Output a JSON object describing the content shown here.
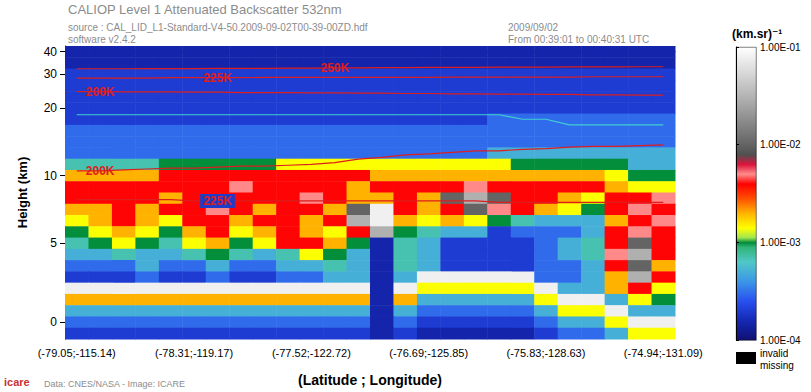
{
  "chart_data": {
    "type": "heatmap",
    "title": "CALIOP Level 1 Attenuated Backscatter 532nm",
    "texts": {
      "source": "source : CAL_LID_L1-Standard-V4-50.2009-09-02T00-39-00ZD.hdf",
      "software": "software v2.4.2",
      "date": "2009/09/02",
      "time": "From 00:39:01 to 00:40:31 UTC",
      "credit": "Data: CNES/NASA - Image: ICARE",
      "logo": "icare",
      "invalid": "invalid",
      "missing": "missing"
    },
    "x_label": "(Latitude ; Longitude)",
    "y_label": "Height (km)",
    "categories": [
      "(-79.05;-115.14)",
      null,
      null,
      null,
      null,
      "(-78.31;-119.17)",
      null,
      null,
      null,
      null,
      "(-77.52;-122.72)",
      null,
      null,
      null,
      null,
      "(-76.69;-125.85)",
      null,
      null,
      null,
      null,
      "(-75.83;-128.63)",
      null,
      null,
      null,
      null,
      "(-74.94;-131.09)"
    ],
    "heights": [
      40,
      35,
      30,
      26.5,
      23,
      20,
      18,
      16,
      14,
      12.5,
      11.2,
      10,
      9.1,
      8.2,
      7.4,
      6.6,
      5.8,
      5,
      4,
      3.1,
      2.4,
      1.8,
      1.2,
      0.6,
      0,
      -0.6
    ],
    "yticks": [
      0,
      5,
      10,
      20,
      30,
      40
    ],
    "cells": [
      [
        0.00015,
        0.00015,
        0.00015,
        0.00015,
        0.00015,
        0.00015,
        0.00015,
        0.00015,
        0.00015,
        0.00015,
        0.00015,
        0.00015,
        0.00015,
        0.00015,
        0.00015,
        0.00015,
        0.00015,
        0.00015,
        0.00015,
        0.00015,
        0.00015,
        0.00015,
        0.00015,
        0.00015,
        0.00015,
        0.00015
      ],
      [
        0.00015,
        0.00015,
        0.00015,
        0.00015,
        0.00015,
        0.00015,
        0.00015,
        0.00015,
        0.00015,
        0.00015,
        0.00015,
        0.00015,
        0.00015,
        0.00015,
        0.00015,
        0.00015,
        0.00015,
        0.00015,
        0.00015,
        0.00015,
        0.00015,
        0.00015,
        0.00015,
        0.00015,
        0.00015,
        0.00015
      ],
      [
        0.0002,
        0.0002,
        0.0002,
        0.0002,
        0.0002,
        0.0002,
        0.0002,
        0.0002,
        0.0002,
        0.0002,
        0.0002,
        0.0002,
        0.0002,
        0.0002,
        0.0002,
        0.0002,
        0.0002,
        0.0002,
        0.0002,
        0.0002,
        0.0002,
        0.0002,
        0.0002,
        0.0002,
        0.0002,
        0.0002
      ],
      [
        0.0002,
        0.0002,
        0.0002,
        0.0002,
        0.0002,
        0.0002,
        0.0002,
        0.0002,
        0.0002,
        0.0002,
        0.0002,
        0.0002,
        0.0002,
        0.0002,
        0.0002,
        0.0002,
        0.0002,
        0.0002,
        0.0002,
        0.0002,
        0.0002,
        0.0002,
        0.0002,
        0.0002,
        0.0002,
        0.0002
      ],
      [
        0.0002,
        0.0002,
        0.0002,
        0.0002,
        0.0002,
        0.0002,
        0.0002,
        0.0002,
        0.0002,
        0.0002,
        0.0002,
        0.0002,
        0.0002,
        0.0002,
        0.0002,
        0.0002,
        0.0002,
        0.0002,
        0.0002,
        0.0002,
        0.0002,
        0.0002,
        0.0002,
        0.0002,
        0.0002,
        0.0002
      ],
      [
        0.0002,
        0.0002,
        0.0002,
        0.0002,
        0.0002,
        0.0002,
        0.0002,
        0.0002,
        0.0002,
        0.0002,
        0.0002,
        0.0002,
        0.0002,
        0.0002,
        0.0002,
        0.0002,
        0.0002,
        0.0002,
        0.0002,
        0.0002,
        0.0002,
        0.0002,
        0.0002,
        0.0002,
        0.0002,
        0.0002
      ],
      [
        0.0002,
        0.0002,
        0.0002,
        0.0002,
        0.0002,
        0.0002,
        0.0002,
        0.0002,
        0.0002,
        0.0002,
        0.0002,
        0.0002,
        0.0002,
        0.0002,
        0.0002,
        0.0002,
        0.0002,
        0.0002,
        0.0003,
        0.0003,
        0.0003,
        0.0003,
        0.0003,
        0.0003,
        0.0003,
        0.0003
      ],
      [
        0.0003,
        0.0003,
        0.0003,
        0.0003,
        0.0003,
        0.0003,
        0.0003,
        0.0003,
        0.0003,
        0.0003,
        0.0003,
        0.0003,
        0.0003,
        0.0003,
        0.0003,
        0.0003,
        0.0003,
        0.0003,
        0.0003,
        0.0003,
        0.0003,
        0.0003,
        0.0003,
        0.0003,
        0.0003,
        0.0003
      ],
      [
        0.0003,
        0.0003,
        0.0003,
        0.0003,
        0.0003,
        0.0003,
        0.0003,
        0.0003,
        0.0003,
        0.0003,
        0.0003,
        0.0003,
        0.0003,
        0.0003,
        0.0003,
        0.0003,
        0.0003,
        0.0003,
        0.0003,
        0.0003,
        0.0003,
        0.0003,
        0.0003,
        0.0003,
        0.0003,
        0.0003
      ],
      [
        0.0003,
        0.0003,
        0.0003,
        0.0003,
        0.0003,
        0.0003,
        0.0003,
        0.0003,
        0.0003,
        0.0003,
        0.0003,
        0.0003,
        0.0003,
        0.0003,
        0.0003,
        0.0003,
        0.0003,
        0.0003,
        0.0005,
        0.0005,
        0.0005,
        0.0005,
        0.0005,
        0.0005,
        0.0005,
        0.0005
      ],
      [
        0.0007,
        0.0007,
        0.0007,
        0.0007,
        0.001,
        0.001,
        0.001,
        0.001,
        0.001,
        0.0014,
        0.0014,
        0.0014,
        0.0014,
        0.0014,
        0.0014,
        0.0014,
        0.0014,
        0.0014,
        0.0014,
        0.001,
        0.001,
        0.001,
        0.001,
        0.001,
        0.0005,
        0.0005
      ],
      [
        0.002,
        0.002,
        0.002,
        0.002,
        0.004,
        0.004,
        0.004,
        0.004,
        0.004,
        0.004,
        0.004,
        0.004,
        0.004,
        0.002,
        0.002,
        0.002,
        0.002,
        0.002,
        0.002,
        0.002,
        0.002,
        0.002,
        0.002,
        0.0014,
        0.001,
        0.001
      ],
      [
        0.004,
        0.004,
        0.004,
        0.004,
        0.004,
        0.004,
        0.004,
        0.005,
        0.004,
        0.004,
        0.004,
        0.004,
        0.002,
        0.004,
        0.004,
        0.004,
        0.004,
        0.005,
        0.004,
        0.004,
        0.004,
        0.004,
        0.004,
        0.002,
        0.0014,
        0.0014
      ],
      [
        0.004,
        0.004,
        0.004,
        0.004,
        0.002,
        0.004,
        0.004,
        0.004,
        0.004,
        0.004,
        0.005,
        0.004,
        0.002,
        0.002,
        0.004,
        0.002,
        0.01,
        0.03,
        0.01,
        0.004,
        0.004,
        0.002,
        0.0014,
        0.004,
        0.004,
        0.005
      ],
      [
        0.002,
        0.002,
        0.004,
        0.002,
        0.004,
        0.004,
        0.005,
        0.004,
        0.002,
        0.004,
        0.004,
        0.002,
        0.01,
        0.08,
        0.004,
        0.002,
        0.004,
        0.01,
        0.005,
        0.004,
        0.002,
        0.0014,
        0.001,
        0.004,
        0.005,
        0.004
      ],
      [
        0.0014,
        0.002,
        0.004,
        0.002,
        0.0014,
        0.004,
        0.004,
        0.002,
        0.004,
        0.004,
        0.002,
        0.004,
        0.03,
        0.08,
        0.002,
        0.0014,
        0.002,
        0.0014,
        0.001,
        0.0007,
        0.0005,
        0.0005,
        0.0005,
        0.002,
        0.004,
        0.005
      ],
      [
        0.001,
        0.0014,
        0.002,
        0.0014,
        0.001,
        0.002,
        0.004,
        0.0014,
        0.002,
        0.004,
        0.002,
        0.0014,
        0.004,
        0.03,
        0.001,
        0.0007,
        0.0005,
        0.0005,
        0.0002,
        0.0003,
        0.0003,
        0.0003,
        0.0005,
        0.004,
        0.005,
        0.004
      ],
      [
        0.0007,
        0.001,
        0.0014,
        0.001,
        0.0007,
        0.0014,
        0.002,
        0.001,
        0.0014,
        0.004,
        0.004,
        0.002,
        0.001,
        0.00015,
        0.0007,
        0.0005,
        0.0002,
        0.0002,
        0.0002,
        0.0002,
        0.0003,
        0.0005,
        0.0007,
        0.004,
        0.01,
        0.004
      ],
      [
        0.0005,
        0.0005,
        0.0007,
        0.0005,
        0.0005,
        0.0007,
        0.001,
        0.0007,
        0.0005,
        0.0007,
        0.0014,
        0.001,
        0.0005,
        0.00015,
        0.0007,
        0.0005,
        0.0002,
        0.0002,
        0.0002,
        0.0002,
        0.0003,
        0.0005,
        0.0007,
        0.005,
        0.03,
        0.004
      ],
      [
        0.0003,
        0.0003,
        0.0003,
        0.0005,
        0.0003,
        0.0003,
        0.0005,
        0.0003,
        0.0003,
        0.0005,
        0.0005,
        0.0007,
        0.0005,
        0.00015,
        0.0007,
        0.0005,
        0.0002,
        0.0002,
        0.0002,
        0.0002,
        0.0003,
        0.0003,
        0.0005,
        0.004,
        0.01,
        0.002
      ],
      [
        0.0002,
        0.0002,
        0.0002,
        0.0003,
        0.0002,
        0.0002,
        0.0003,
        0.0002,
        0.0002,
        0.0003,
        0.0003,
        0.0005,
        0.0005,
        0.00015,
        0.0005,
        0.08,
        0.08,
        0.08,
        0.08,
        0.08,
        0.0003,
        0.0003,
        0.0005,
        0.002,
        0.03,
        0.004
      ],
      [
        0.08,
        0.08,
        0.08,
        0.08,
        0.08,
        0.08,
        0.08,
        0.08,
        0.08,
        0.08,
        0.08,
        0.08,
        0.08,
        0.00015,
        0.08,
        0.0014,
        0.0014,
        0.0014,
        0.0014,
        0.0014,
        0.08,
        0.0005,
        0.0005,
        0.002,
        0.004,
        0.0014
      ],
      [
        0.002,
        0.002,
        0.002,
        0.002,
        0.002,
        0.002,
        0.002,
        0.002,
        0.002,
        0.002,
        0.002,
        0.002,
        0.002,
        0.00015,
        0.002,
        0.0005,
        0.0005,
        0.0005,
        0.0005,
        0.0005,
        0.0014,
        0.08,
        0.08,
        0.0005,
        0.0014,
        0.001
      ],
      [
        0.0005,
        0.0005,
        0.0005,
        0.0005,
        0.0005,
        0.0005,
        0.0005,
        0.0005,
        0.0005,
        0.0005,
        0.0005,
        0.0005,
        0.0005,
        0.00015,
        0.0005,
        0.0003,
        0.0003,
        0.0003,
        0.0003,
        0.0003,
        0.0005,
        0.0014,
        0.0014,
        0.08,
        0.0005,
        0.0005
      ],
      [
        0.0003,
        0.0003,
        0.0003,
        0.0003,
        0.0003,
        0.0003,
        0.0003,
        0.0003,
        0.0003,
        0.0003,
        0.0003,
        0.0003,
        0.0003,
        0.00015,
        0.0003,
        0.0002,
        0.0002,
        0.0002,
        0.0002,
        0.0002,
        0.0003,
        0.0005,
        0.0005,
        0.0014,
        0.08,
        0.08
      ],
      [
        0.0002,
        0.0002,
        0.0002,
        0.0002,
        0.0002,
        0.0002,
        0.0002,
        0.0002,
        0.0002,
        0.0002,
        0.0002,
        0.0002,
        0.0002,
        0.00015,
        0.0002,
        0.00015,
        0.00015,
        0.00015,
        0.00015,
        0.00015,
        0.0002,
        0.0003,
        0.0003,
        0.0005,
        0.0014,
        0.0014
      ]
    ],
    "colorbar": {
      "label": "(km.sr)⁻¹",
      "range": [
        0.0001,
        0.1
      ],
      "ticks": [
        {
          "value": 0.0001,
          "label": "1.00E-04"
        },
        {
          "value": 0.001,
          "label": "1.00E-03"
        },
        {
          "value": 0.01,
          "label": "1.00E-02"
        },
        {
          "value": 0.1,
          "label": "1.00E-01"
        }
      ]
    },
    "lines": [
      {
        "name": "250K",
        "color": "#dc1e1e",
        "values": [
          32.4,
          32.4,
          32.4,
          32.5,
          32.5,
          32.5,
          32.6,
          32.6,
          32.6,
          32.7,
          32.7,
          32.8,
          32.8,
          32.9,
          32.9,
          33,
          33,
          33,
          33.1,
          33.1,
          33.1,
          33.2,
          33.2,
          33.2,
          33.3,
          33.3
        ]
      },
      {
        "name": "225K",
        "color": "#dc1e1e",
        "values": [
          28.8,
          28.8,
          28.8,
          28.8,
          28.9,
          28.9,
          28.9,
          28.9,
          29,
          29,
          29,
          29,
          29,
          29,
          29,
          29,
          29.1,
          29.1,
          29.1,
          29.1,
          29.1,
          29.1,
          29.2,
          29.2,
          29.2,
          29.2
        ]
      },
      {
        "name": "200K",
        "color": "#dc1e1e",
        "values": [
          24.6,
          24.6,
          24.5,
          24.5,
          24.5,
          24.4,
          24.4,
          24.3,
          24.3,
          24.3,
          24.2,
          24.2,
          24.1,
          24.1,
          24,
          24,
          23.9,
          23.9,
          23.8,
          23.8,
          23.7,
          23.7,
          23.6,
          23.6,
          23.5,
          23.5
        ]
      },
      {
        "name": "200K",
        "color": "#dc1e1e",
        "values": [
          10.5,
          10.5,
          10.6,
          10.7,
          10.8,
          10.8,
          10.9,
          11,
          11,
          11.1,
          11.2,
          11.4,
          11.8,
          12,
          12.3,
          12.4,
          12.6,
          12.8,
          12.8,
          13,
          13.1,
          13.3,
          13.4,
          13.4,
          13.5,
          13.6
        ]
      },
      {
        "name": "225K",
        "color": "#dc1e1e",
        "values": [
          8.1,
          8.1,
          8.1,
          8.1,
          8.1,
          8,
          8,
          8,
          8,
          8,
          8,
          8,
          8,
          8,
          8,
          8,
          8,
          8,
          7.9,
          7.9,
          7.9,
          7.9,
          7.9,
          7.9,
          7.9,
          7.9
        ]
      },
      {
        "color": "#40d0d0",
        "values": [
          18.8,
          18.8,
          18.8,
          18.8,
          18.8,
          18.8,
          18.8,
          18.8,
          18.8,
          18.8,
          18.8,
          18.8,
          18.8,
          18.8,
          18.8,
          18.8,
          18.8,
          18.8,
          18.8,
          18,
          18,
          17,
          17,
          17,
          17,
          17
        ]
      }
    ]
  }
}
